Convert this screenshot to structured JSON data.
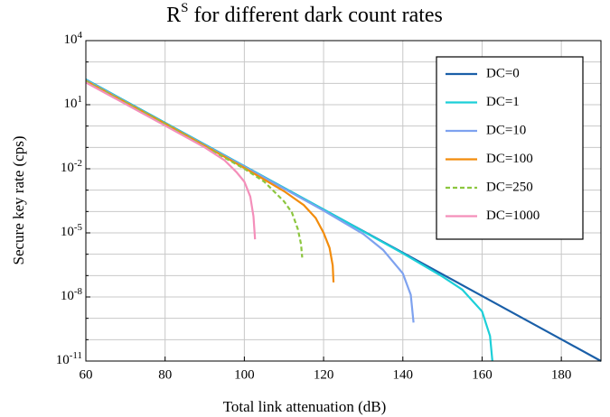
{
  "chart_data": {
    "type": "line",
    "title": {
      "base": "R",
      "sup": "S",
      "text": "for different dark count rates"
    },
    "xlabel": "Total link attenuation (dB)",
    "ylabel": "Secure key rate (cps)",
    "xlim": [
      60,
      190
    ],
    "xticks": [
      60,
      80,
      100,
      120,
      140,
      160,
      180
    ],
    "ylim": [
      1e-11,
      10000
    ],
    "ylog": true,
    "yticks": [
      {
        "value": 10000,
        "label": "10",
        "exponent": "4"
      },
      {
        "value": 10,
        "label": "10",
        "exponent": "1"
      },
      {
        "value": 0.01,
        "label": "10",
        "exponent": "-2"
      },
      {
        "value": 1e-05,
        "label": "10",
        "exponent": "-5"
      },
      {
        "value": 1e-08,
        "label": "10",
        "exponent": "-8"
      },
      {
        "value": 1e-11,
        "label": "10",
        "exponent": "-11"
      }
    ],
    "minor_yticks": [
      1000,
      100,
      1,
      0.1,
      0.001,
      0.0001,
      1e-06,
      1e-07,
      1e-09,
      1e-10
    ],
    "grid": true,
    "legend": "upper right",
    "series": [
      {
        "name": "DC=0",
        "color": "#1a5fa8",
        "linestyle": "solid",
        "x": [
          60,
          80,
          100,
          120,
          140,
          160,
          180,
          190
        ],
        "values": [
          151,
          1.42,
          0.0133,
          0.000125,
          1.18e-06,
          1.11e-08,
          1.04e-10,
          1e-11
        ]
      },
      {
        "name": "DC=1",
        "color": "#1ccfd8",
        "linestyle": "solid",
        "x": [
          60,
          80,
          100,
          120,
          140,
          150,
          155,
          160,
          162,
          162.6
        ],
        "values": [
          151,
          1.42,
          0.0133,
          0.000125,
          1.1e-06,
          9e-08,
          2.2e-08,
          2.1e-09,
          1.5e-10,
          1e-11
        ]
      },
      {
        "name": "DC=10",
        "color": "#7ea2ef",
        "linestyle": "solid",
        "x": [
          60,
          80,
          100,
          120,
          130,
          135,
          140,
          142,
          142.7
        ],
        "values": [
          141,
          1.3,
          0.0126,
          0.00011,
          8.9e-06,
          1.6e-06,
          1.26e-07,
          1.26e-08,
          6.3e-10
        ]
      },
      {
        "name": "DC=100",
        "color": "#f28c0c",
        "linestyle": "solid",
        "x": [
          60,
          80,
          100,
          110,
          115,
          118,
          120,
          121.5,
          122.3,
          122.5
        ],
        "values": [
          130,
          1.3,
          0.011,
          0.0009,
          0.0002,
          5e-05,
          1e-05,
          2e-06,
          3e-07,
          4.8e-08
        ]
      },
      {
        "name": "DC=250",
        "color": "#8cc63f",
        "linestyle": "dashed",
        "x": [
          60,
          80,
          100,
          105,
          110,
          112,
          113.5,
          114.3,
          114.6
        ],
        "values": [
          125,
          1.2,
          0.01,
          0.0025,
          0.0003,
          9e-05,
          1.5e-05,
          3e-06,
          7e-07
        ]
      },
      {
        "name": "DC=1000",
        "color": "#f48fba",
        "linestyle": "solid",
        "x": [
          60,
          80,
          90,
          95,
          98,
          100,
          101.5,
          102.3,
          102.7
        ],
        "values": [
          110,
          1.05,
          0.1,
          0.025,
          0.007,
          0.0025,
          0.0005,
          6e-05,
          5e-06
        ]
      }
    ]
  }
}
